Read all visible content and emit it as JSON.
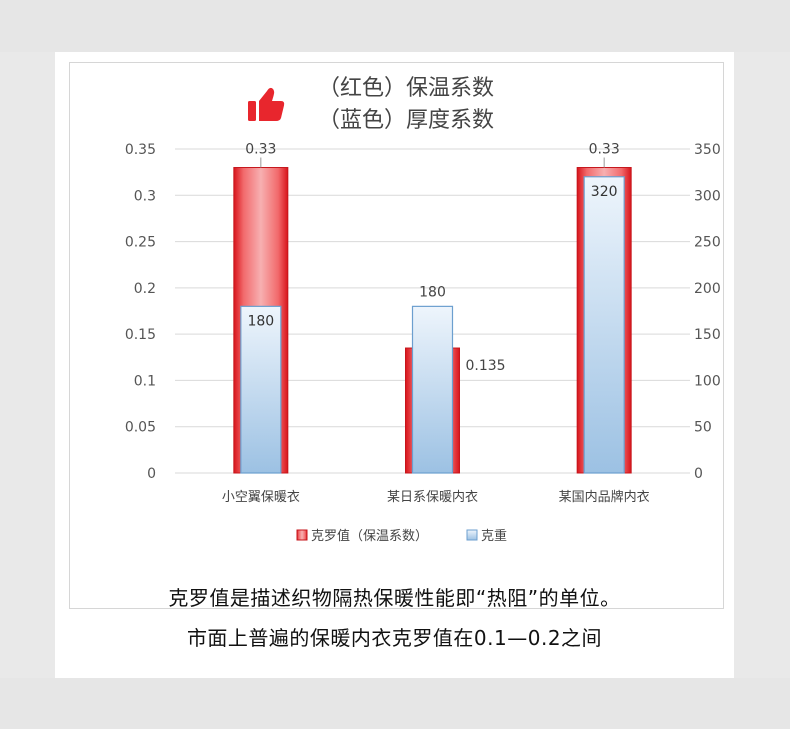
{
  "chart_data": {
    "type": "bar",
    "title_lines": [
      "（红色）保温系数",
      "（蓝色）厚度系数"
    ],
    "categories": [
      "小空翼保暖衣",
      "某日系保暖内衣",
      "某国内品牌内衣"
    ],
    "series": [
      {
        "name": "克罗值（保温系数）",
        "axis": "left",
        "values": [
          0.33,
          0.135,
          0.33
        ],
        "data_labels": [
          "0.33",
          "0.135",
          "0.33"
        ],
        "color": "#e8262d"
      },
      {
        "name": "克重",
        "axis": "right",
        "values": [
          180,
          180,
          320
        ],
        "data_labels": [
          "180",
          "180",
          "320"
        ],
        "color": "#9cc1e3"
      }
    ],
    "left_axis": {
      "ylim": [
        0,
        0.35
      ],
      "ticks": [
        "0",
        "0.05",
        "0.1",
        "0.15",
        "0.2",
        "0.25",
        "0.3",
        "0.35"
      ]
    },
    "right_axis": {
      "ylim": [
        0,
        350
      ],
      "ticks": [
        "0",
        "50",
        "100",
        "150",
        "200",
        "250",
        "300",
        "350"
      ]
    },
    "grid": true,
    "legend_position": "bottom"
  },
  "icons": {
    "badge": "thumbs-up-icon",
    "badge_color": "#e8262d"
  },
  "captions": [
    "克罗值是描述织物隔热保暖性能即“热阻”的单位。",
    "市面上普遍的保暖内衣克罗值在0.1—0.2之间"
  ]
}
